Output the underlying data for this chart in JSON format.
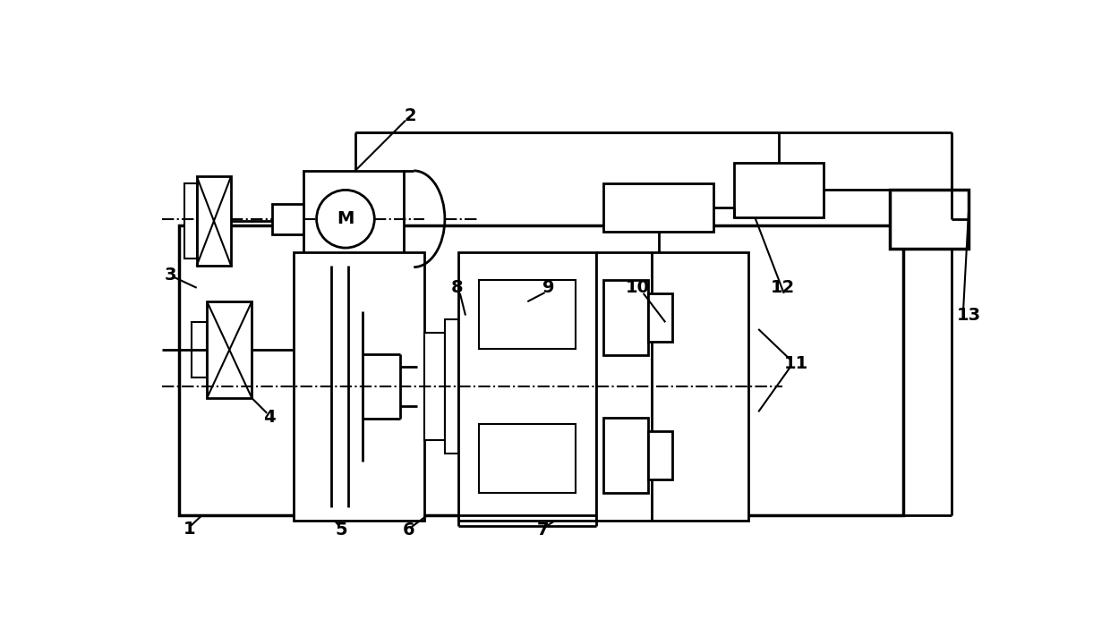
{
  "background_color": "#ffffff",
  "line_color": "#000000",
  "lw": 2.0,
  "fig_width": 12.4,
  "fig_height": 6.92
}
